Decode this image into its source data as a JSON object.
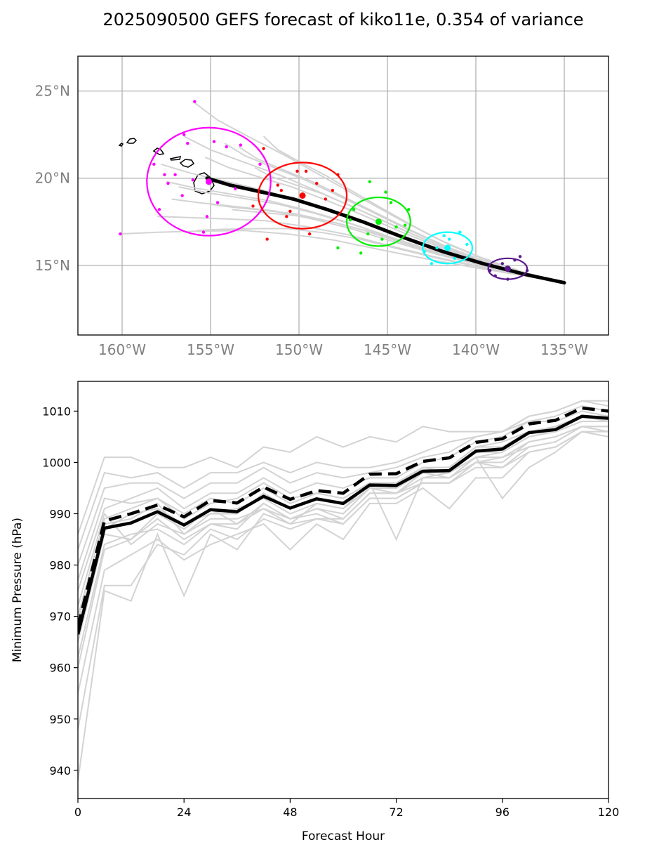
{
  "title": "2025090500 GEFS forecast of kiko11e, 0.354 of variance",
  "chart_data": [
    {
      "type": "map",
      "xlim": [
        -162.5,
        -132.5
      ],
      "ylim": [
        11,
        27
      ],
      "x_ticks": [
        {
          "value": -160,
          "label": "160°W"
        },
        {
          "value": -155,
          "label": "155°W"
        },
        {
          "value": -150,
          "label": "150°W"
        },
        {
          "value": -145,
          "label": "145°W"
        },
        {
          "value": -140,
          "label": "140°W"
        },
        {
          "value": -135,
          "label": "135°W"
        }
      ],
      "y_ticks": [
        {
          "value": 15,
          "label": "15°N"
        },
        {
          "value": 20,
          "label": "20°N"
        },
        {
          "value": 25,
          "label": "25°N"
        }
      ],
      "grid": true,
      "mean_track": {
        "color": "#000000",
        "lon": [
          -135.0,
          -137.3,
          -139.6,
          -141.9,
          -144.1,
          -146.4,
          -148.4,
          -150.3,
          -152.1,
          -153.9,
          -155.2
        ],
        "lat": [
          14.0,
          14.5,
          15.1,
          15.8,
          16.6,
          17.5,
          18.2,
          18.8,
          19.2,
          19.6,
          20.0
        ]
      },
      "member_tracks_color": "#d3d3d3",
      "member_endpoint_lons": [
        -160.1,
        -158.0,
        -157.2,
        -157.8,
        -156.5,
        -156.0,
        -155.3,
        -154.2,
        -153.4,
        -155.0,
        -156.8,
        -152.5,
        -152.0,
        -157.5,
        -153.8,
        -155.8
      ],
      "member_endpoint_lats": [
        16.8,
        17.8,
        18.8,
        20.8,
        22.4,
        24.4,
        21.2,
        22.0,
        21.8,
        18.5,
        19.5,
        20.6,
        22.4,
        19.8,
        18.2,
        17.0
      ],
      "ellipses": [
        {
          "name": "",
          "color": "#ff00ff",
          "center": [
            -155.1,
            19.8
          ],
          "radii": [
            3.5,
            3.1
          ]
        },
        {
          "name": "",
          "color": "#ff0000",
          "center": [
            -149.8,
            19.0
          ],
          "radii": [
            2.5,
            1.9
          ]
        },
        {
          "name": "",
          "color": "#00ee00",
          "center": [
            -145.5,
            17.5
          ],
          "radii": [
            1.8,
            1.4
          ]
        },
        {
          "name": "",
          "color": "#00ffff",
          "center": [
            -141.6,
            16.0
          ],
          "radii": [
            1.4,
            0.9
          ]
        },
        {
          "name": "",
          "color": "#5b1a8c",
          "center": [
            -138.2,
            14.8
          ],
          "radii": [
            1.1,
            0.6
          ]
        }
      ],
      "ellipse_points": [
        {
          "color": "#ff00ff",
          "lon": [
            -160.1,
            -158.2,
            -157.4,
            -157.9,
            -156.5,
            -155.9,
            -154.8,
            -154.1,
            -153.3,
            -156.6,
            -157.0,
            -152.2,
            -155.2,
            -154.6,
            -156.0,
            -157.6,
            -153.6,
            -155.4,
            -156.3
          ],
          "lat": [
            16.8,
            20.8,
            19.7,
            18.2,
            22.5,
            24.4,
            22.1,
            21.8,
            21.9,
            19.0,
            20.2,
            20.8,
            17.8,
            18.6,
            19.9,
            20.2,
            19.4,
            16.9,
            22.0
          ]
        },
        {
          "color": "#ff0000",
          "lon": [
            -152.0,
            -151.2,
            -150.1,
            -149.6,
            -150.5,
            -149.0,
            -148.5,
            -151.8,
            -149.4,
            -150.7,
            -148.1,
            -152.6,
            -151.0,
            -147.8
          ],
          "lat": [
            21.7,
            19.6,
            20.4,
            20.4,
            18.1,
            19.7,
            18.8,
            16.5,
            16.8,
            17.8,
            19.3,
            18.4,
            19.3,
            20.2
          ]
        },
        {
          "color": "#00ee00",
          "lon": [
            -146.0,
            -145.1,
            -147.1,
            -144.8,
            -143.8,
            -146.1,
            -146.5,
            -144.5,
            -145.3,
            -147.8,
            -144.0,
            -146.9
          ],
          "lat": [
            19.8,
            19.2,
            17.6,
            18.6,
            18.2,
            16.8,
            15.7,
            17.2,
            16.5,
            16.0,
            17.3,
            18.2
          ]
        },
        {
          "color": "#00ffff",
          "lon": [
            -142.5,
            -141.8,
            -140.9,
            -141.2,
            -142.9,
            -140.5,
            -141.5,
            -142.2
          ],
          "lat": [
            15.1,
            16.7,
            16.9,
            15.4,
            15.8,
            16.2,
            16.5,
            16.0
          ]
        },
        {
          "color": "#5b1a8c",
          "lon": [
            -139.2,
            -138.5,
            -137.8,
            -137.1,
            -138.2,
            -137.5,
            -138.9
          ],
          "lat": [
            14.7,
            15.1,
            15.3,
            14.7,
            14.2,
            15.5,
            14.4
          ]
        }
      ]
    },
    {
      "type": "line",
      "xlabel": "Forecast Hour",
      "ylabel": "Minimum Pressure (hPa)",
      "xlim": [
        0,
        120
      ],
      "ylim": [
        934.5,
        1015.8
      ],
      "x_ticks": [
        0,
        24,
        48,
        72,
        96,
        120
      ],
      "y_ticks": [
        940,
        950,
        960,
        970,
        980,
        990,
        1000,
        1010
      ],
      "x": [
        0,
        6,
        12,
        18,
        24,
        30,
        36,
        42,
        48,
        54,
        60,
        66,
        72,
        78,
        84,
        90,
        96,
        102,
        108,
        114,
        120
      ],
      "series": [
        {
          "name": "",
          "style": "solid",
          "color": "#000000",
          "values": [
            966.5,
            987.2,
            988.2,
            990.4,
            987.8,
            990.8,
            990.4,
            993.4,
            991.1,
            992.9,
            992.0,
            995.6,
            995.5,
            998.3,
            998.4,
            1002.2,
            1002.6,
            1005.8,
            1006.4,
            1009.0,
            1008.6
          ]
        },
        {
          "name": "",
          "style": "dashed",
          "color": "#000000",
          "values": [
            968.0,
            988.6,
            990.0,
            991.7,
            989.4,
            992.6,
            992.1,
            995.2,
            992.8,
            994.5,
            994.0,
            997.7,
            997.8,
            1000.2,
            1000.9,
            1003.9,
            1004.6,
            1007.5,
            1008.2,
            1010.6,
            1010.0
          ]
        }
      ],
      "members_color": "#d3d3d3",
      "members": [
        [
          938,
          975,
          973,
          986,
          974,
          986,
          983,
          990,
          988,
          992,
          991,
          996,
          985,
          997,
          998,
          1001,
          993,
          999,
          1002,
          1006,
          1005
        ],
        [
          948,
          976,
          976,
          984,
          982,
          987,
          985,
          989,
          987,
          989,
          988,
          993,
          993,
          996,
          996,
          1000,
          1000,
          1004,
          1005,
          1007,
          1006
        ],
        [
          955,
          979,
          982,
          985,
          981,
          984,
          986,
          988,
          983,
          988,
          985,
          992,
          992,
          995,
          991,
          997,
          997,
          1002,
          1003,
          1006,
          1005
        ],
        [
          962,
          984,
          986,
          987,
          984,
          988,
          988,
          991,
          989,
          991,
          989,
          994,
          994,
          997,
          997,
          1000,
          1001,
          1003,
          1004,
          1007,
          1007
        ],
        [
          967,
          988,
          989,
          992,
          986,
          990,
          991,
          993,
          990,
          992,
          991,
          995,
          995,
          998,
          998,
          1001,
          1001,
          1004,
          1005,
          1007,
          1007
        ],
        [
          970,
          989,
          991,
          993,
          989,
          992,
          993,
          996,
          993,
          994,
          993,
          996,
          996,
          999,
          999,
          1003,
          1004,
          1006,
          1007,
          1009,
          1008
        ],
        [
          975,
          991,
          993,
          995,
          991,
          994,
          994,
          997,
          994,
          996,
          995,
          997,
          997,
          1000,
          1001,
          1004,
          1005,
          1008,
          1008,
          1010,
          1009
        ],
        [
          980,
          995,
          996,
          996,
          993,
          996,
          996,
          999,
          996,
          998,
          997,
          998,
          999,
          1001,
          1002,
          1005,
          1006,
          1008,
          1009,
          1011,
          1010
        ],
        [
          983,
          998,
          997,
          998,
          995,
          998,
          998,
          1000,
          998,
          1000,
          999,
          999,
          1000,
          1002,
          1004,
          1005,
          1006,
          1009,
          1010,
          1012,
          1011
        ],
        [
          986,
          1001,
          1001,
          999,
          999,
          1001,
          999,
          1003,
          1002,
          1005,
          1003,
          1005,
          1004,
          1007,
          1006,
          1006,
          1006,
          1009,
          1010,
          1012,
          1012
        ],
        [
          965,
          986,
          985,
          989,
          985,
          988,
          987,
          992,
          989,
          990,
          988,
          993,
          993,
          996,
          996,
          999,
          999,
          1002,
          1003,
          1006,
          1006
        ],
        [
          972,
          990,
          984,
          988,
          986,
          989,
          989,
          991,
          988,
          989,
          989,
          994,
          994,
          998,
          997,
          1001,
          1002,
          1005,
          1006,
          1008,
          1008
        ],
        [
          960,
          983,
          985,
          990,
          987,
          991,
          988,
          992,
          989,
          991,
          990,
          995,
          994,
          996,
          996,
          1000,
          999,
          1003,
          1004,
          1007,
          1006
        ],
        [
          977,
          993,
          992,
          993,
          990,
          993,
          992,
          995,
          992,
          994,
          993,
          996,
          995,
          999,
          999,
          1003,
          1003,
          1006,
          1007,
          1009,
          1009
        ],
        [
          969,
          987,
          990,
          991,
          988,
          990,
          990,
          994,
          991,
          993,
          992,
          996,
          996,
          999,
          998,
          1002,
          1002,
          1005,
          1006,
          1008,
          1008
        ]
      ]
    }
  ]
}
